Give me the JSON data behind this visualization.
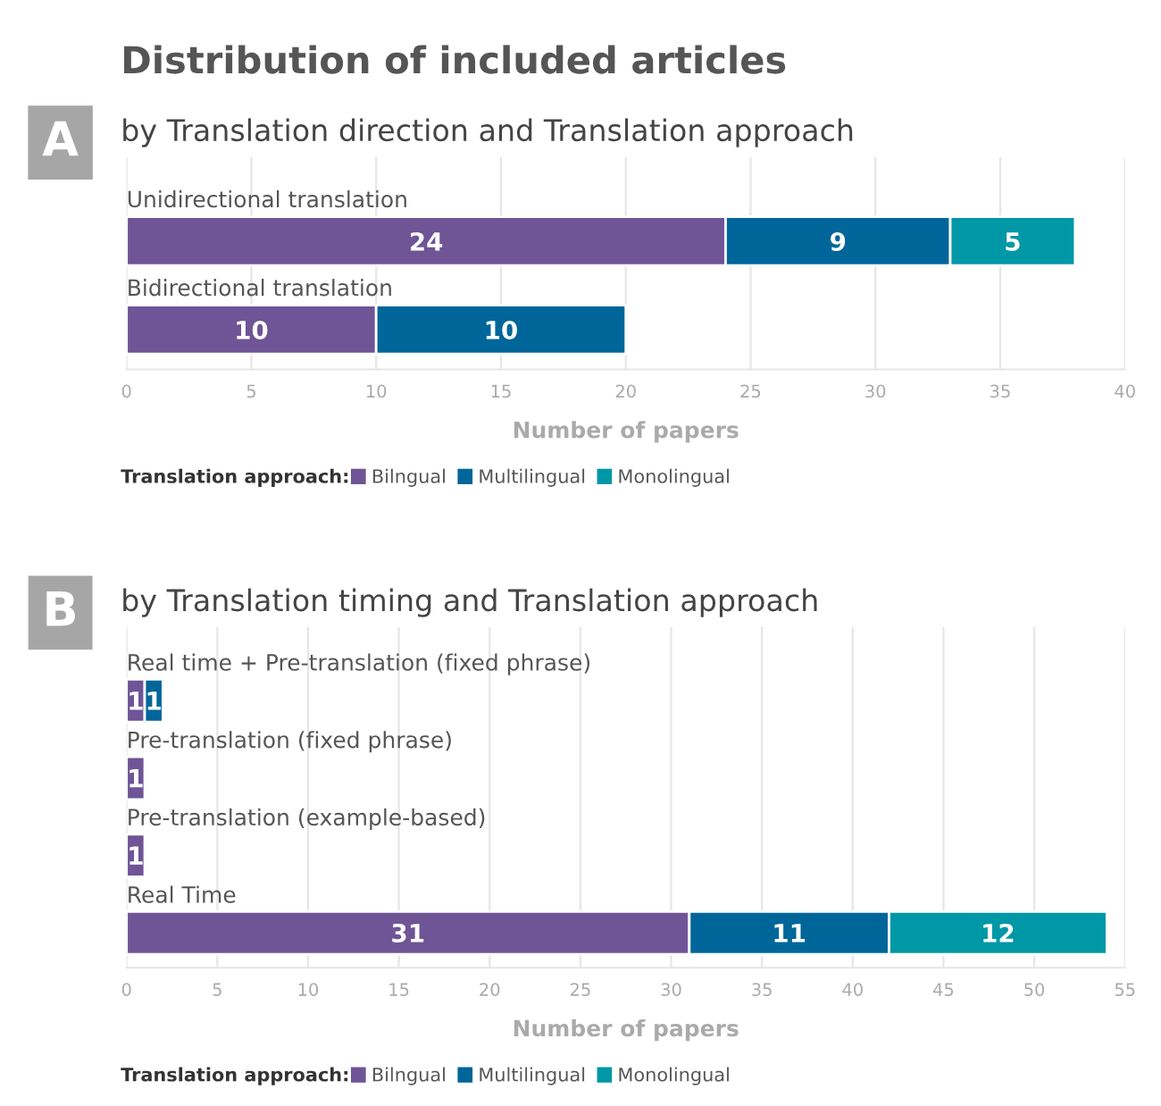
{
  "chart_data": [
    {
      "type": "bar",
      "orientation": "horizontal",
      "stacked": true,
      "title": "Distribution of included articles",
      "subtitle": "by Translation direction and Translation approach",
      "annotations": [
        "A"
      ],
      "categories": [
        "Unidirectional translation",
        "Bidirectional translation"
      ],
      "series": [
        {
          "name": "Bilngual",
          "color": "#6f5496",
          "values": [
            24,
            10
          ]
        },
        {
          "name": "Multilingual",
          "color": "#00669a",
          "values": [
            9,
            10
          ]
        },
        {
          "name": "Monolingual",
          "color": "#0097a7",
          "values": [
            5,
            null
          ]
        }
      ],
      "xlabel": "Number of papers",
      "xlim": [
        0,
        40
      ],
      "xticks": [
        0,
        5,
        10,
        15,
        20,
        25,
        30,
        35,
        40
      ],
      "grid": "x",
      "data_labels": true,
      "legend": "bottom",
      "legend_title": "Translation approach:"
    },
    {
      "type": "bar",
      "orientation": "horizontal",
      "stacked": true,
      "subtitle": "by Translation timing and Translation approach",
      "annotations": [
        "B"
      ],
      "categories": [
        "Real time + Pre-translation (fixed phrase)",
        "Pre-translation (fixed phrase)",
        "Pre-translation (example-based)",
        "Real Time"
      ],
      "series": [
        {
          "name": "Bilngual",
          "color": "#6f5496",
          "values": [
            1,
            1,
            1,
            31
          ]
        },
        {
          "name": "Multilingual",
          "color": "#00669a",
          "values": [
            1,
            null,
            null,
            11
          ]
        },
        {
          "name": "Monolingual",
          "color": "#0097a7",
          "values": [
            null,
            null,
            null,
            12
          ]
        }
      ],
      "xlabel": "Number of papers",
      "xlim": [
        0,
        55
      ],
      "xticks": [
        0,
        5,
        10,
        15,
        20,
        25,
        30,
        35,
        40,
        45,
        50,
        55
      ],
      "grid": "x",
      "data_labels": true,
      "legend": "bottom",
      "legend_title": "Translation approach:"
    }
  ]
}
